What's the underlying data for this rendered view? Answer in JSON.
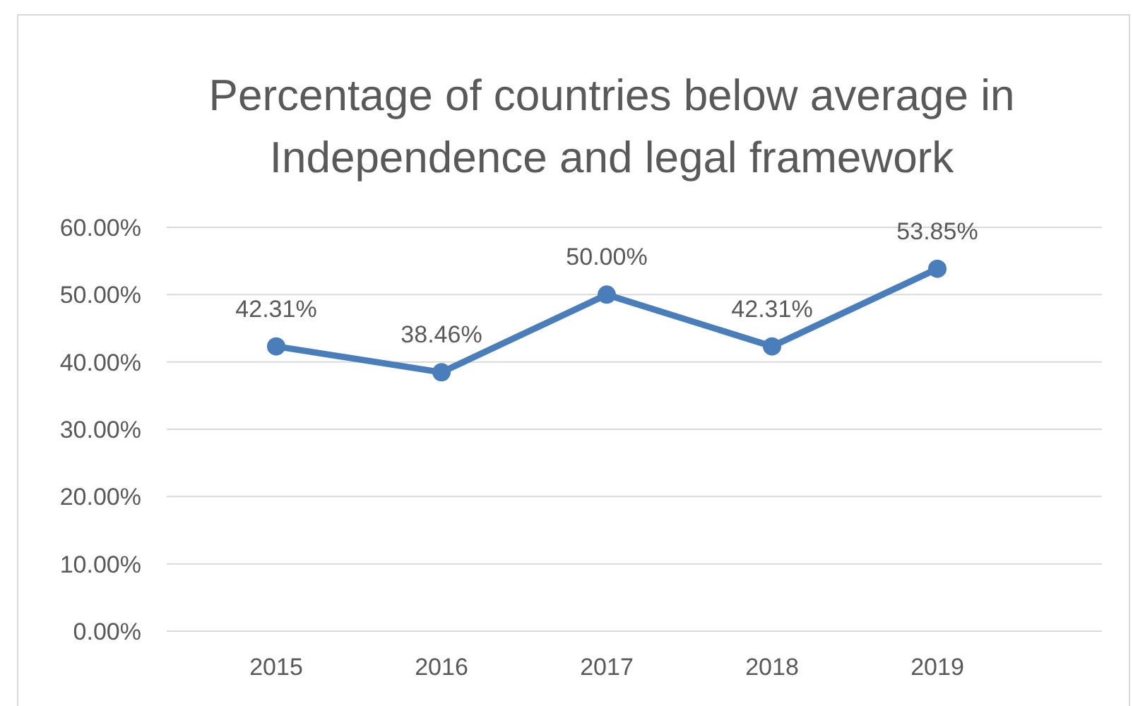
{
  "chart_data": {
    "type": "line",
    "title": "Percentage of countries below average in Independence and legal framework",
    "categories": [
      "2015",
      "2016",
      "2017",
      "2018",
      "2019"
    ],
    "series": [
      {
        "color": "#4a7ebb",
        "values": [
          42.31,
          38.46,
          50.0,
          42.31,
          53.85
        ],
        "value_labels": [
          "42.31%",
          "38.46%",
          "50.00%",
          "42.31%",
          "53.85%"
        ]
      }
    ],
    "ylim": [
      0,
      60
    ],
    "yticks": [
      {
        "value": 0,
        "label": "0.00%"
      },
      {
        "value": 10,
        "label": "10.00%"
      },
      {
        "value": 20,
        "label": "20.00%"
      },
      {
        "value": 30,
        "label": "30.00%"
      },
      {
        "value": 40,
        "label": "40.00%"
      },
      {
        "value": 50,
        "label": "50.00%"
      },
      {
        "value": 60,
        "label": "60.00%"
      }
    ],
    "grid": "y",
    "marker": "circle",
    "line_style": "solid"
  }
}
